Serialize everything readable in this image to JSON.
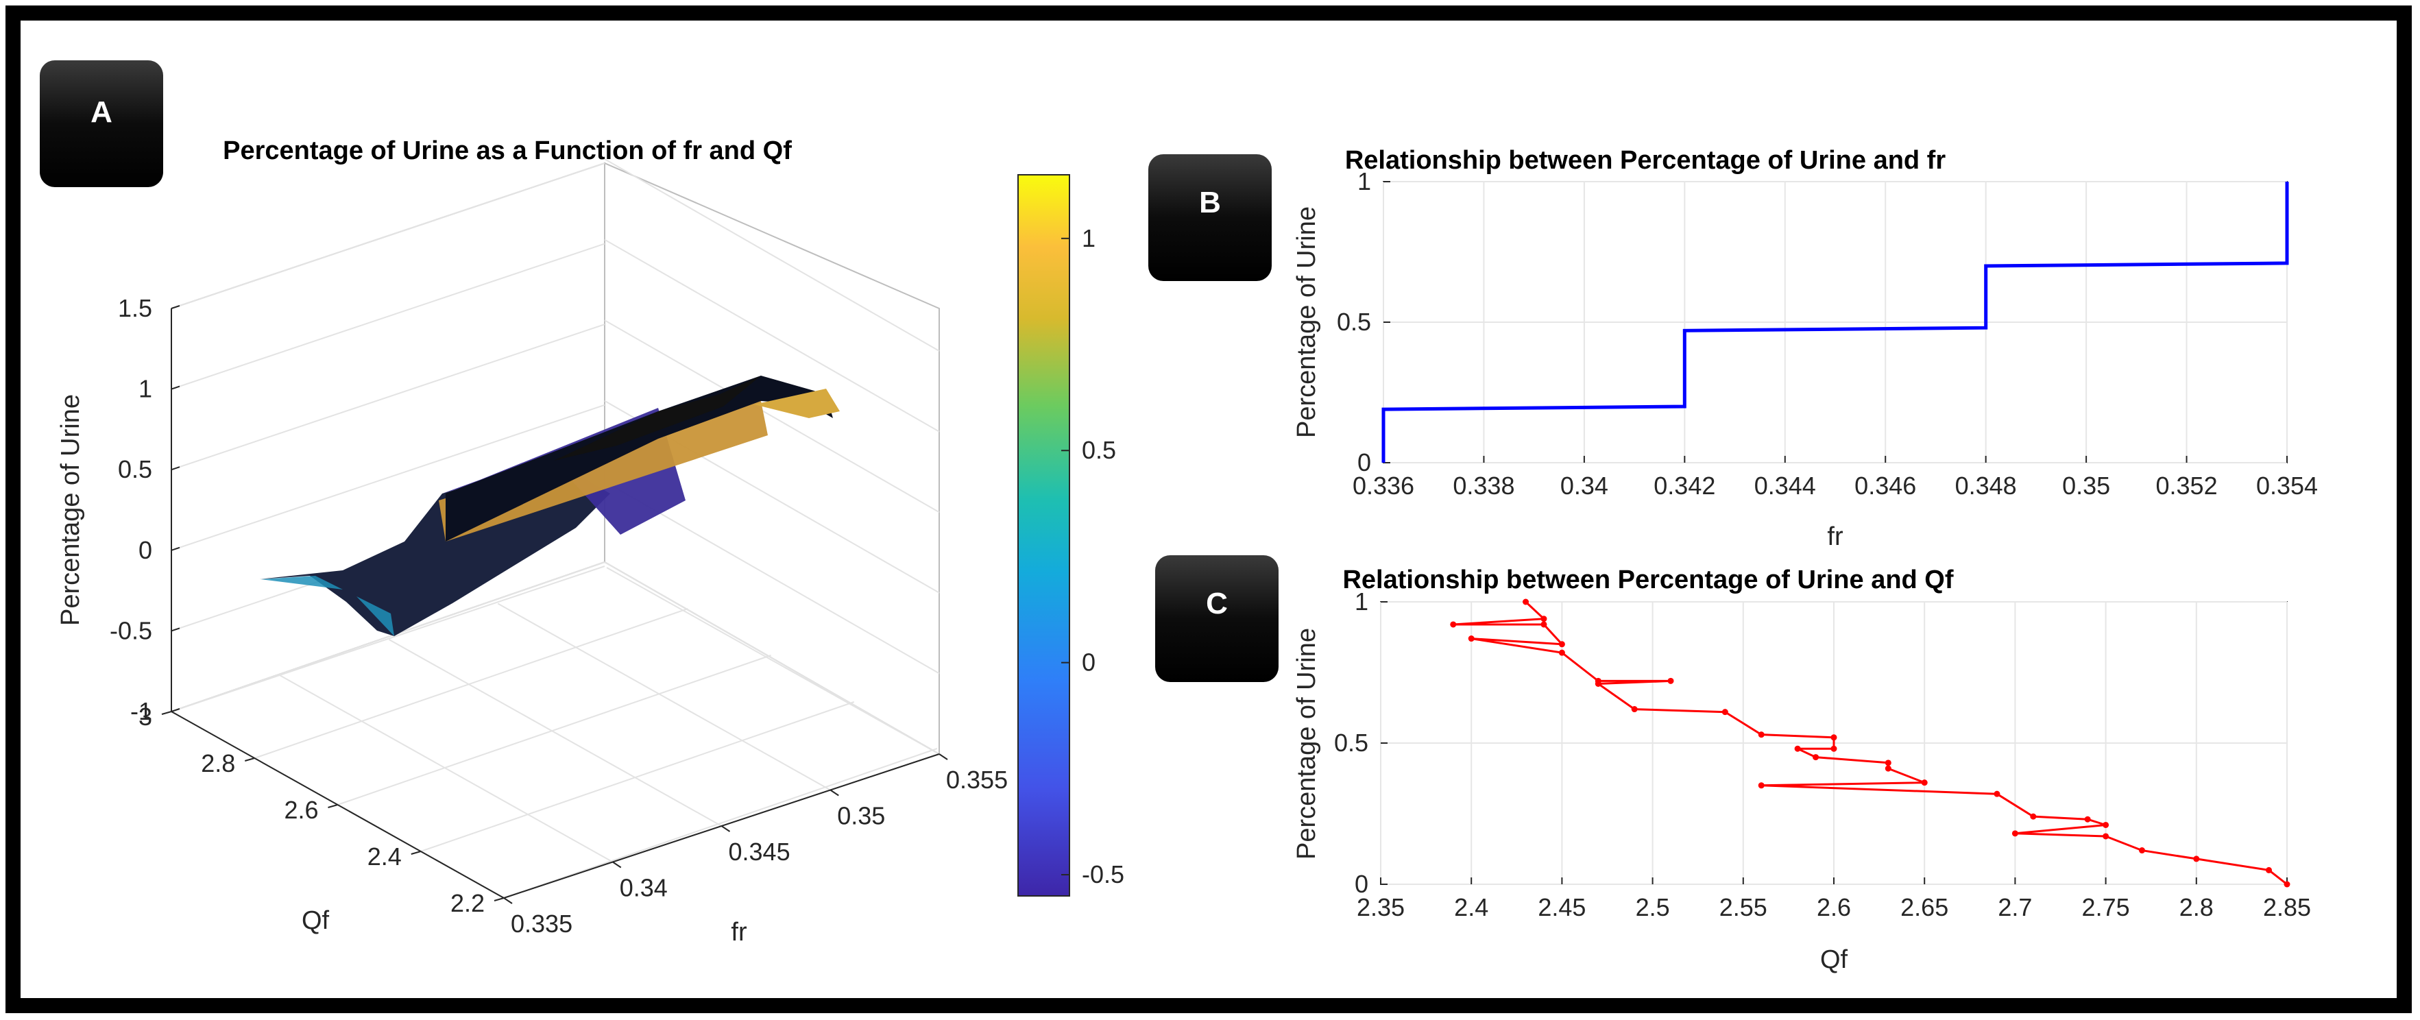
{
  "panels": {
    "A": {
      "badge": "A"
    },
    "B": {
      "badge": "B"
    },
    "C": {
      "badge": "C"
    }
  },
  "chart_data": [
    {
      "id": "A",
      "type": "surface",
      "title": "Percentage of Urine as a Function of fr and Qf",
      "xlabel": "fr",
      "ylabel": "Qf",
      "zlabel": "Percentage of Urine",
      "xlim": [
        0.335,
        0.355
      ],
      "ylim": [
        2.2,
        3.0
      ],
      "zlim": [
        -1,
        1.5
      ],
      "xticks": [
        "0.335",
        "0.34",
        "0.345",
        "0.35",
        "0.355"
      ],
      "yticks": [
        "2.2",
        "2.4",
        "2.6",
        "2.8",
        "3"
      ],
      "zticks": [
        "-1",
        "-0.5",
        "0",
        "0.5",
        "1",
        "1.5"
      ],
      "colorbar": {
        "range": [
          -0.55,
          1.15
        ],
        "ticks": [
          "-0.5",
          "0",
          "0.5",
          "1"
        ],
        "colormap": "parula"
      },
      "grid": true
    },
    {
      "id": "B",
      "type": "line",
      "title": "Relationship between Percentage of Urine and fr",
      "xlabel": "fr",
      "ylabel": "Percentage of Urine",
      "xlim": [
        0.336,
        0.354
      ],
      "ylim": [
        0,
        1
      ],
      "xticks": [
        "0.336",
        "0.338",
        "0.34",
        "0.342",
        "0.344",
        "0.346",
        "0.348",
        "0.35",
        "0.352",
        "0.354"
      ],
      "yticks": [
        "0",
        "0.5",
        "1"
      ],
      "color": "#0000ff",
      "grid": true,
      "series": [
        {
          "name": "Percentage of Urine",
          "x": [
            0.336,
            0.336,
            0.342,
            0.342,
            0.348,
            0.348,
            0.354,
            0.354
          ],
          "y": [
            0.0,
            0.19,
            0.2,
            0.47,
            0.48,
            0.7,
            0.71,
            1.0
          ]
        }
      ]
    },
    {
      "id": "C",
      "type": "line",
      "title": "Relationship between Percentage of Urine and Qf",
      "xlabel": "Qf",
      "ylabel": "Percentage of Urine",
      "xlim": [
        2.35,
        2.85
      ],
      "ylim": [
        0,
        1
      ],
      "xticks": [
        "2.35",
        "2.4",
        "2.45",
        "2.5",
        "2.55",
        "2.6",
        "2.65",
        "2.7",
        "2.75",
        "2.8",
        "2.85"
      ],
      "yticks": [
        "0",
        "0.5",
        "1"
      ],
      "color": "#ff0000",
      "markers": true,
      "grid": true,
      "series": [
        {
          "name": "Percentage of Urine",
          "x": [
            2.43,
            2.44,
            2.39,
            2.44,
            2.45,
            2.4,
            2.45,
            2.47,
            2.51,
            2.47,
            2.49,
            2.54,
            2.56,
            2.6,
            2.6,
            2.58,
            2.59,
            2.63,
            2.63,
            2.65,
            2.56,
            2.69,
            2.71,
            2.74,
            2.75,
            2.7,
            2.75,
            2.77,
            2.8,
            2.84,
            2.85
          ],
          "y": [
            1.0,
            0.94,
            0.92,
            0.92,
            0.85,
            0.87,
            0.82,
            0.72,
            0.72,
            0.71,
            0.62,
            0.61,
            0.53,
            0.52,
            0.48,
            0.48,
            0.45,
            0.43,
            0.41,
            0.36,
            0.35,
            0.32,
            0.24,
            0.23,
            0.21,
            0.18,
            0.17,
            0.12,
            0.09,
            0.05,
            0.0
          ]
        }
      ]
    }
  ]
}
